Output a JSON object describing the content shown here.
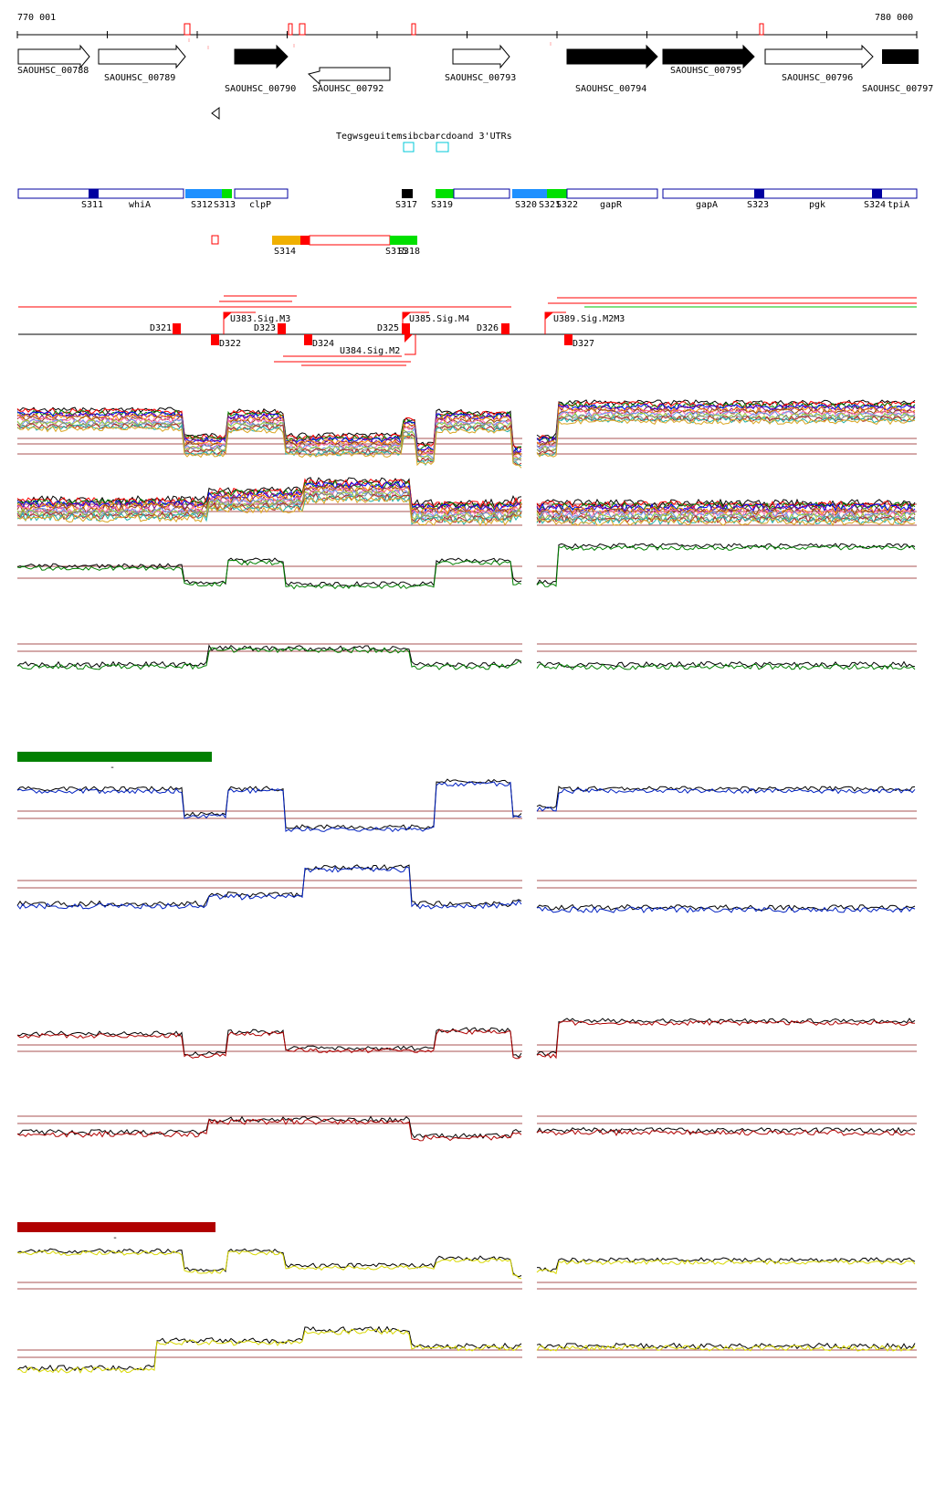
{
  "coords": {
    "start": "770 001",
    "end": "780 000"
  },
  "genes": [
    {
      "label": "SAOUHSC_00788",
      "dir": "fwd",
      "filled": false,
      "row": 0
    },
    {
      "label": "SAOUHSC_00789",
      "dir": "fwd",
      "filled": false,
      "row": 0
    },
    {
      "label": "SAOUHSC_00790",
      "dir": "fwd",
      "filled": true,
      "row": 0
    },
    {
      "label": "SAOUHSC_00792",
      "dir": "rev",
      "filled": false,
      "row": 1
    },
    {
      "label": "SAOUHSC_00793",
      "dir": "fwd",
      "filled": false,
      "row": 0
    },
    {
      "label": "SAOUHSC_00794",
      "dir": "fwd",
      "filled": true,
      "row": 0
    },
    {
      "label": "SAOUHSC_00795",
      "dir": "fwd",
      "filled": true,
      "row": 0
    },
    {
      "label": "SAOUHSC_00796",
      "dir": "fwd",
      "filled": false,
      "row": 0
    },
    {
      "label": "SAOUHSC_00797",
      "dir": "fwd",
      "filled": true,
      "row": 0
    }
  ],
  "utr_label": "Tegwsgeuitemsibcbarcdoand 3'UTRs",
  "segments": [
    {
      "label": "S311"
    },
    {
      "label": "whiA"
    },
    {
      "label": "S312"
    },
    {
      "label": "S313"
    },
    {
      "label": "clpP"
    },
    {
      "label": "S317"
    },
    {
      "label": "S319"
    },
    {
      "label": "S320"
    },
    {
      "label": "S321"
    },
    {
      "label": "S322"
    },
    {
      "label": "gapR"
    },
    {
      "label": "gapA"
    },
    {
      "label": "S323"
    },
    {
      "label": "pgk"
    },
    {
      "label": "S324"
    },
    {
      "label": "tpiA"
    }
  ],
  "segments2": [
    {
      "label": "S314"
    },
    {
      "label": "S315"
    },
    {
      "label": "S318"
    }
  ],
  "breakpoints": [
    {
      "label": "D321"
    },
    {
      "label": "D322"
    },
    {
      "label": "D323"
    },
    {
      "label": "D324"
    },
    {
      "label": "D325"
    },
    {
      "label": "D326"
    },
    {
      "label": "D327"
    }
  ],
  "upshift_labels": [
    {
      "label": "U383.Sig.M3"
    },
    {
      "label": "U384.Sig.M2"
    },
    {
      "label": "U385.Sig.M4"
    },
    {
      "label": "U389.Sig.M2M3"
    }
  ],
  "colors": {
    "gene_outline": "#000000",
    "segment_blue": "#0000a0",
    "segment_lightblue": "#1e90ff",
    "segment_green": "#00e000",
    "segment_orange": "#f0b000",
    "tiling_red": "#ff0000",
    "panel_green": "#008000",
    "panel_blue": "#0020c0",
    "panel_darkred": "#b00000",
    "panel_yellow": "#d8d800",
    "threshold": "#8b1a1a"
  },
  "legend_bars": [
    {
      "color": "#008000",
      "tick": "-"
    },
    {
      "color": "#b00000",
      "tick": "-"
    }
  ]
}
